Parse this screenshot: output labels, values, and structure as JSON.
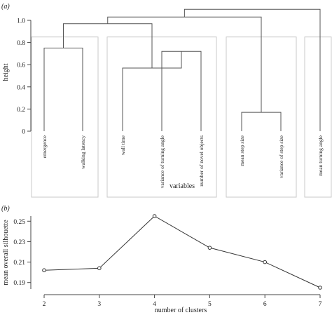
{
  "panel_a": {
    "tag": "(a)"
  },
  "panel_b": {
    "tag": "(b)"
  },
  "chart_data": [
    {
      "type": "dendrogram",
      "ylabel": "height",
      "xlabel": "variables",
      "ylim": [
        0,
        1.08
      ],
      "yticks": [
        0,
        0.2,
        0.4,
        0.6,
        0.8,
        1.0
      ],
      "ytick_labels": [
        "0",
        "0.2",
        "0.4",
        "0.6",
        "0.8",
        "1.0"
      ],
      "leaves": [
        "emergence",
        "walking latency",
        "wall time",
        "variance of turning angle",
        "number of novel objects",
        "mean step size",
        "variance of step size",
        "mean turning angle"
      ],
      "merges": [
        {
          "left": 0,
          "right": 1,
          "height": 0.75
        },
        {
          "left": 3,
          "right": 4,
          "height": 0.72
        },
        {
          "left": 2,
          "right": "m2",
          "height": 0.57
        },
        {
          "left": 5,
          "right": 6,
          "height": 0.17
        },
        {
          "left": "m1",
          "right": "m3",
          "height": 0.97
        },
        {
          "left": "m5",
          "right": "m4",
          "height": 1.03
        },
        {
          "left": "m6",
          "right": 7,
          "height": 1.1
        }
      ],
      "cluster_boxes": [
        {
          "leaves": [
            0,
            1
          ]
        },
        {
          "leaves": [
            2,
            3,
            4
          ]
        },
        {
          "leaves": [
            5,
            6
          ]
        },
        {
          "leaves": [
            7
          ]
        }
      ],
      "cut_height": 0.85
    },
    {
      "type": "line",
      "xlabel": "number of clusters",
      "ylabel": "mean overall silhouette",
      "x": [
        2,
        3,
        4,
        5,
        6,
        7
      ],
      "xtick_labels": [
        "2",
        "3",
        "4",
        "5",
        "6",
        "7"
      ],
      "yticks": [
        0.19,
        0.21,
        0.23,
        0.25
      ],
      "ytick_labels": [
        "0.19",
        "0.21",
        "0.23",
        "0.25"
      ],
      "series": [
        {
          "values": [
            0.202,
            0.204,
            0.255,
            0.224,
            0.21,
            0.185
          ]
        }
      ],
      "xlim": [
        2,
        7
      ],
      "ylim": [
        0.185,
        0.255
      ],
      "marker": "open-circle",
      "line_color": "#333333"
    }
  ]
}
